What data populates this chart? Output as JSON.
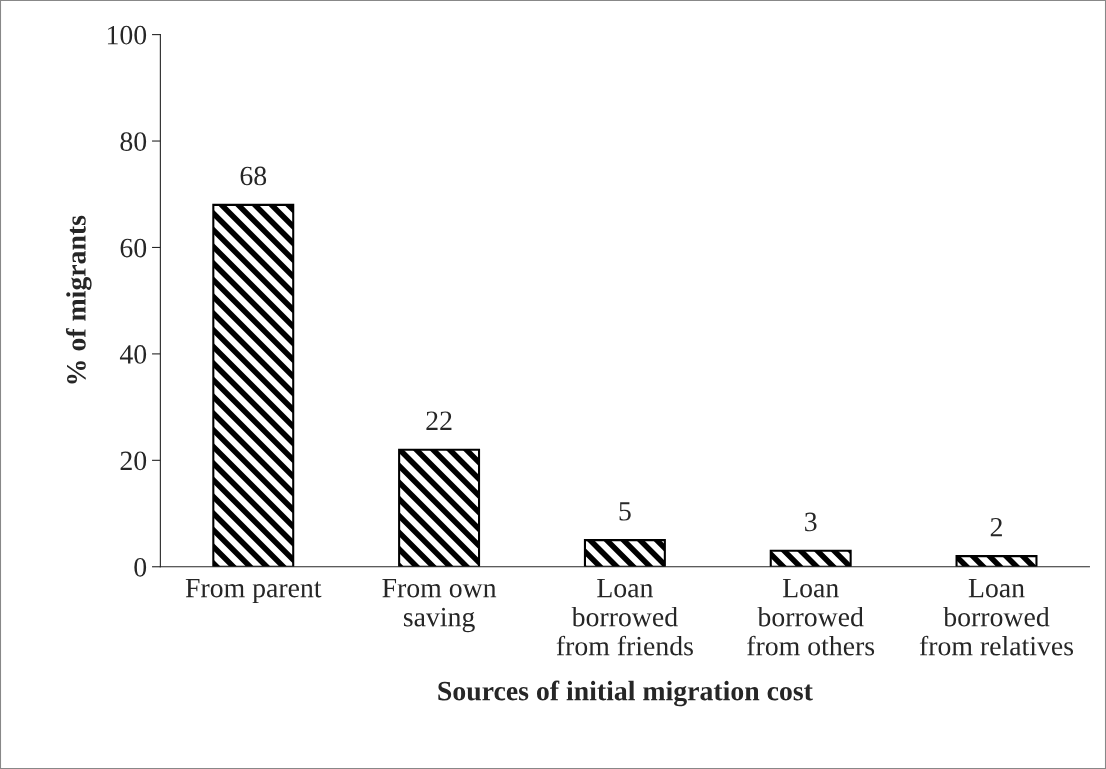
{
  "chart_data": {
    "type": "bar",
    "xlabel": "Sources of initial migration cost",
    "ylabel": "% of migrants",
    "categories": [
      "From parent",
      "From own\nsaving",
      "Loan\nborrowed\nfrom friends",
      "Loan\nborrowed\nfrom others",
      "Loan\nborrowed\nfrom relatives"
    ],
    "values": [
      68,
      22,
      5,
      3,
      2
    ],
    "color": "#000000",
    "ylim": [
      0,
      100
    ],
    "yticks": [
      0,
      20,
      40,
      60,
      80,
      100
    ],
    "data_labels": true,
    "grid": false,
    "legend": false
  }
}
